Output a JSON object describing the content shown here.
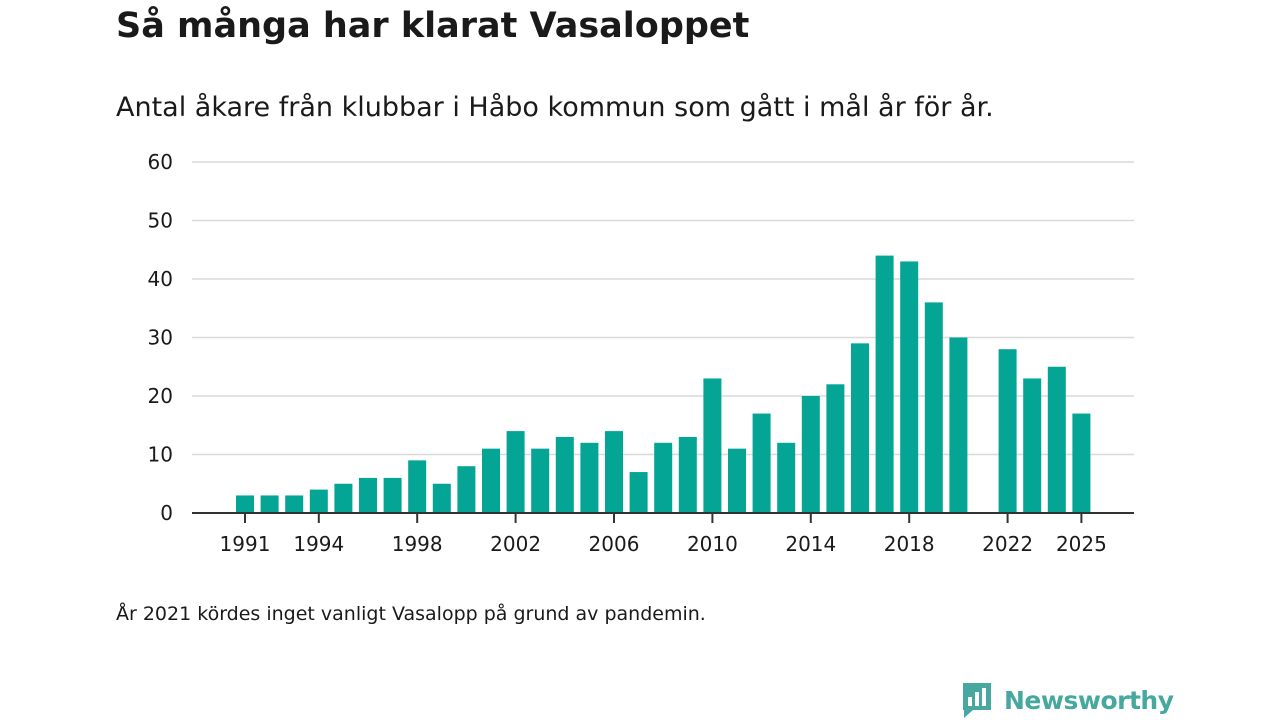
{
  "title": "Så många har klarat Vasaloppet",
  "subtitle": "Antal åkare från klubbar i Håbo kommun som gått i mål år för år.",
  "note": "År 2021 kördes inget vanligt Vasalopp på grund av pandemin.",
  "brand": {
    "name": "Newsworthy",
    "color": "#46a89f"
  },
  "chart_data": {
    "type": "bar",
    "title": "Så många har klarat Vasaloppet",
    "xlabel": "",
    "ylabel": "",
    "ylim": [
      0,
      60
    ],
    "grid": true,
    "yticks": [
      0,
      10,
      20,
      30,
      40,
      50,
      60
    ],
    "xticks": [
      1991,
      1994,
      1998,
      2002,
      2006,
      2010,
      2014,
      2018,
      2022,
      2025
    ],
    "bar_color": "#05a596",
    "categories": [
      1991,
      1992,
      1993,
      1994,
      1995,
      1996,
      1997,
      1998,
      1999,
      2000,
      2001,
      2002,
      2003,
      2004,
      2005,
      2006,
      2007,
      2008,
      2009,
      2010,
      2011,
      2012,
      2013,
      2014,
      2015,
      2016,
      2017,
      2018,
      2019,
      2020,
      2021,
      2022,
      2023,
      2024,
      2025
    ],
    "values": [
      3,
      3,
      3,
      4,
      5,
      6,
      6,
      9,
      5,
      8,
      11,
      14,
      11,
      13,
      12,
      14,
      7,
      12,
      13,
      23,
      11,
      17,
      12,
      20,
      22,
      29,
      44,
      43,
      36,
      30,
      null,
      28,
      23,
      25,
      17
    ]
  }
}
